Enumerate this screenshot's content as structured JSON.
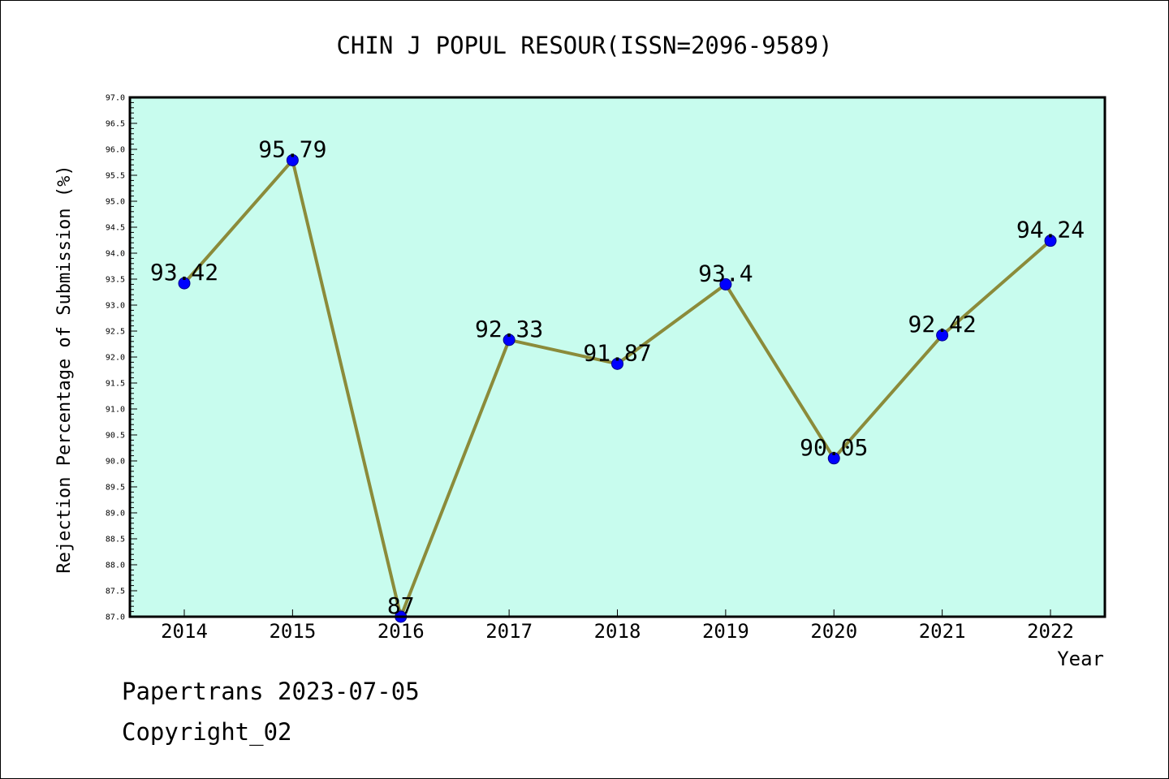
{
  "chart_data": {
    "type": "line",
    "title": "CHIN J POPUL RESOUR(ISSN=2096-9589)",
    "xlabel": "Year",
    "ylabel": "Rejection Percentage of Submission (%)",
    "categories": [
      "2014",
      "2015",
      "2016",
      "2017",
      "2018",
      "2019",
      "2020",
      "2021",
      "2022"
    ],
    "values": [
      93.42,
      95.79,
      87,
      92.33,
      91.87,
      93.4,
      90.05,
      92.42,
      94.24
    ],
    "data_labels": [
      "93.42",
      "95.79",
      "87",
      "92.33",
      "91.87",
      "93.4",
      "90.05",
      "92.42",
      "94.24"
    ],
    "ylim": [
      87.0,
      97.0
    ],
    "yticks": [
      "87.0",
      "87.5",
      "88.0",
      "88.5",
      "89.0",
      "89.5",
      "90.0",
      "90.5",
      "91.0",
      "91.5",
      "92.0",
      "92.5",
      "93.0",
      "93.5",
      "94.0",
      "94.5",
      "95.0",
      "95.5",
      "96.0",
      "96.5",
      "97.0"
    ],
    "grid": false,
    "legend": "none",
    "colors": {
      "plot_background": "#c8fcee",
      "line": "#8b8b3a",
      "marker": "#0000ff"
    }
  },
  "footer": {
    "line1": "Papertrans 2023-07-05",
    "line2": "Copyright_02"
  }
}
